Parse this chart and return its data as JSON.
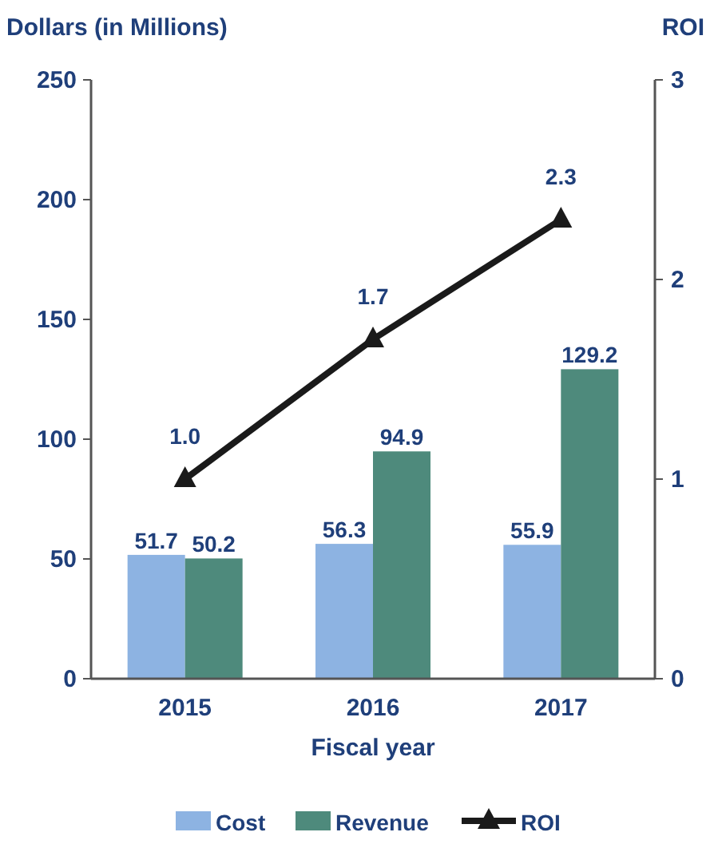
{
  "chart_data": {
    "type": "bar",
    "ylabel": "Dollars (in Millions)",
    "y2label": "ROI",
    "xlabel": "Fiscal year",
    "categories": [
      "2015",
      "2016",
      "2017"
    ],
    "series": [
      {
        "name": "Cost",
        "color": "#8db3e2",
        "values": [
          51.7,
          56.3,
          55.9
        ]
      },
      {
        "name": "Revenue",
        "color": "#4e8a7c",
        "values": [
          50.2,
          94.9,
          129.2
        ]
      },
      {
        "name": "ROI",
        "type": "line",
        "axis": "y2",
        "color": "#1a1a1a",
        "marker": "triangle",
        "values": [
          1.0,
          1.7,
          2.3
        ],
        "value_labels": [
          "1.0",
          "1.7",
          "2.3"
        ]
      }
    ],
    "ylim": [
      0,
      250
    ],
    "yticks": [
      0,
      50,
      100,
      150,
      200,
      250
    ],
    "y2lim": [
      0,
      3
    ],
    "y2ticks": [
      0,
      1,
      2,
      3
    ],
    "data_labels": true,
    "legend": "bottom",
    "grid": false
  }
}
